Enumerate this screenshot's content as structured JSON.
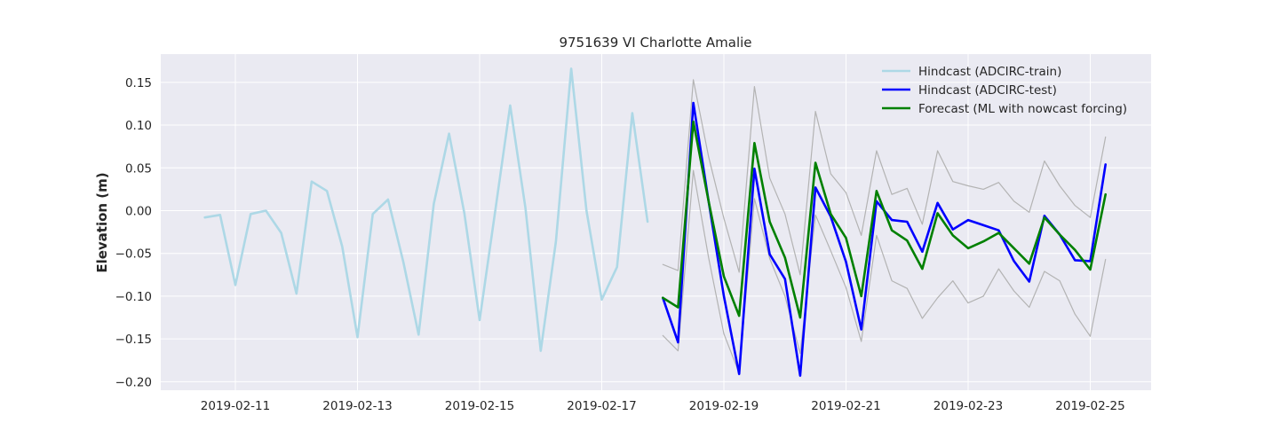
{
  "chart_data": {
    "type": "line",
    "title": "9751639 VI Charlotte Amalie",
    "xlabel": "",
    "ylabel": "Elevation (m)",
    "x_ticks": [
      "2019-02-11",
      "2019-02-13",
      "2019-02-15",
      "2019-02-17",
      "2019-02-19",
      "2019-02-21",
      "2019-02-23",
      "2019-02-25"
    ],
    "y_ticks": [
      "0.15",
      "0.10",
      "0.05",
      "0.00",
      "−0.05",
      "−0.10",
      "−0.15",
      "−0.20"
    ],
    "ylim": [
      -0.21,
      0.183
    ],
    "xlim": [
      "2019-02-09 18:00",
      "2019-02-25 18:00"
    ],
    "grid": true,
    "legend_position": "top-right",
    "background_color": "#eaeaf2",
    "series": [
      {
        "name": "Hindcast (ADCIRC-train)",
        "color": "#add8e6",
        "x": [
          "2019-02-10 12:00",
          "2019-02-10 18:00",
          "2019-02-11 00:00",
          "2019-02-11 06:00",
          "2019-02-11 12:00",
          "2019-02-11 18:00",
          "2019-02-12 00:00",
          "2019-02-12 06:00",
          "2019-02-12 12:00",
          "2019-02-12 18:00",
          "2019-02-13 00:00",
          "2019-02-13 06:00",
          "2019-02-13 12:00",
          "2019-02-13 18:00",
          "2019-02-14 00:00",
          "2019-02-14 06:00",
          "2019-02-14 12:00",
          "2019-02-14 18:00",
          "2019-02-15 00:00",
          "2019-02-15 06:00",
          "2019-02-15 12:00",
          "2019-02-15 18:00",
          "2019-02-16 00:00",
          "2019-02-16 06:00",
          "2019-02-16 12:00",
          "2019-02-16 18:00",
          "2019-02-17 00:00",
          "2019-02-17 06:00",
          "2019-02-17 12:00",
          "2019-02-17 18:00"
        ],
        "values": [
          -0.008,
          -0.005,
          -0.087,
          -0.004,
          0.0,
          -0.026,
          -0.097,
          0.034,
          0.023,
          -0.042,
          -0.148,
          -0.004,
          0.013,
          -0.06,
          -0.145,
          0.008,
          0.09,
          -0.003,
          -0.128,
          -0.003,
          0.123,
          0.003,
          -0.164,
          -0.036,
          0.166,
          0.0,
          -0.104,
          -0.066,
          0.114,
          -0.013
        ]
      },
      {
        "name": "Hindcast (ADCIRC-test)",
        "color": "#0000ff",
        "x": [
          "2019-02-18 00:00",
          "2019-02-18 06:00",
          "2019-02-18 12:00",
          "2019-02-18 18:00",
          "2019-02-19 00:00",
          "2019-02-19 06:00",
          "2019-02-19 12:00",
          "2019-02-19 18:00",
          "2019-02-20 00:00",
          "2019-02-20 06:00",
          "2019-02-20 12:00",
          "2019-02-20 18:00",
          "2019-02-21 00:00",
          "2019-02-21 06:00",
          "2019-02-21 12:00",
          "2019-02-21 18:00",
          "2019-02-22 00:00",
          "2019-02-22 06:00",
          "2019-02-22 12:00",
          "2019-02-22 18:00",
          "2019-02-23 00:00",
          "2019-02-23 06:00",
          "2019-02-23 12:00",
          "2019-02-23 18:00",
          "2019-02-24 00:00",
          "2019-02-24 06:00",
          "2019-02-24 12:00",
          "2019-02-24 18:00",
          "2019-02-25 00:00",
          "2019-02-25 06:00"
        ],
        "values": [
          -0.102,
          -0.154,
          0.126,
          0.011,
          -0.1,
          -0.191,
          0.049,
          -0.051,
          -0.08,
          -0.193,
          0.027,
          -0.007,
          -0.06,
          -0.139,
          0.011,
          -0.011,
          -0.013,
          -0.048,
          0.009,
          -0.022,
          -0.011,
          -0.017,
          -0.023,
          -0.059,
          -0.083,
          -0.006,
          -0.028,
          -0.058,
          -0.059,
          0.054
        ]
      },
      {
        "name": "Forecast (ML with nowcast forcing)",
        "color": "#008000",
        "x": [
          "2019-02-18 00:00",
          "2019-02-18 06:00",
          "2019-02-18 12:00",
          "2019-02-18 18:00",
          "2019-02-19 00:00",
          "2019-02-19 06:00",
          "2019-02-19 12:00",
          "2019-02-19 18:00",
          "2019-02-20 00:00",
          "2019-02-20 06:00",
          "2019-02-20 12:00",
          "2019-02-20 18:00",
          "2019-02-21 00:00",
          "2019-02-21 06:00",
          "2019-02-21 12:00",
          "2019-02-21 18:00",
          "2019-02-22 00:00",
          "2019-02-22 06:00",
          "2019-02-22 12:00",
          "2019-02-22 18:00",
          "2019-02-23 00:00",
          "2019-02-23 06:00",
          "2019-02-23 12:00",
          "2019-02-23 18:00",
          "2019-02-24 00:00",
          "2019-02-24 06:00",
          "2019-02-24 12:00",
          "2019-02-24 18:00",
          "2019-02-25 00:00",
          "2019-02-25 06:00"
        ],
        "values": [
          -0.102,
          -0.113,
          0.104,
          0.011,
          -0.077,
          -0.123,
          0.079,
          -0.013,
          -0.055,
          -0.125,
          0.056,
          -0.004,
          -0.032,
          -0.1,
          0.023,
          -0.023,
          -0.035,
          -0.068,
          -0.003,
          -0.029,
          -0.044,
          -0.036,
          -0.026,
          -0.044,
          -0.062,
          -0.008,
          -0.028,
          -0.046,
          -0.069,
          0.019
        ]
      },
      {
        "name": "",
        "color": "#b3b3b3",
        "x": [
          "2019-02-18 00:00",
          "2019-02-18 06:00",
          "2019-02-18 12:00",
          "2019-02-18 18:00",
          "2019-02-19 00:00",
          "2019-02-19 06:00",
          "2019-02-19 12:00",
          "2019-02-19 18:00",
          "2019-02-20 00:00",
          "2019-02-20 06:00",
          "2019-02-20 12:00",
          "2019-02-20 18:00",
          "2019-02-21 00:00",
          "2019-02-21 06:00",
          "2019-02-21 12:00",
          "2019-02-21 18:00",
          "2019-02-22 00:00",
          "2019-02-22 06:00",
          "2019-02-22 12:00",
          "2019-02-22 18:00",
          "2019-02-23 00:00",
          "2019-02-23 06:00",
          "2019-02-23 12:00",
          "2019-02-23 18:00",
          "2019-02-24 00:00",
          "2019-02-24 06:00",
          "2019-02-24 12:00",
          "2019-02-24 18:00",
          "2019-02-25 00:00",
          "2019-02-25 06:00"
        ],
        "values": [
          -0.063,
          -0.07,
          0.153,
          0.063,
          -0.009,
          -0.072,
          0.145,
          0.038,
          -0.004,
          -0.075,
          0.116,
          0.043,
          0.021,
          -0.029,
          0.07,
          0.019,
          0.026,
          -0.016,
          0.07,
          0.034,
          0.029,
          0.025,
          0.033,
          0.011,
          -0.002,
          0.058,
          0.029,
          0.006,
          -0.008,
          0.086
        ]
      },
      {
        "name": "",
        "color": "#b3b3b3",
        "x": [
          "2019-02-18 00:00",
          "2019-02-18 06:00",
          "2019-02-18 12:00",
          "2019-02-18 18:00",
          "2019-02-19 00:00",
          "2019-02-19 06:00",
          "2019-02-19 12:00",
          "2019-02-19 18:00",
          "2019-02-20 00:00",
          "2019-02-20 06:00",
          "2019-02-20 12:00",
          "2019-02-20 18:00",
          "2019-02-21 00:00",
          "2019-02-21 06:00",
          "2019-02-21 12:00",
          "2019-02-21 18:00",
          "2019-02-22 00:00",
          "2019-02-22 06:00",
          "2019-02-22 12:00",
          "2019-02-22 18:00",
          "2019-02-23 00:00",
          "2019-02-23 06:00",
          "2019-02-23 12:00",
          "2019-02-23 18:00",
          "2019-02-24 00:00",
          "2019-02-24 06:00",
          "2019-02-24 12:00",
          "2019-02-24 18:00",
          "2019-02-25 00:00",
          "2019-02-25 06:00"
        ],
        "values": [
          -0.146,
          -0.164,
          0.047,
          -0.055,
          -0.144,
          -0.19,
          0.014,
          -0.056,
          -0.1,
          -0.167,
          -0.005,
          -0.047,
          -0.09,
          -0.153,
          -0.029,
          -0.082,
          -0.091,
          -0.126,
          -0.102,
          -0.082,
          -0.108,
          -0.1,
          -0.068,
          -0.094,
          -0.113,
          -0.071,
          -0.082,
          -0.121,
          -0.147,
          -0.057
        ]
      }
    ]
  }
}
